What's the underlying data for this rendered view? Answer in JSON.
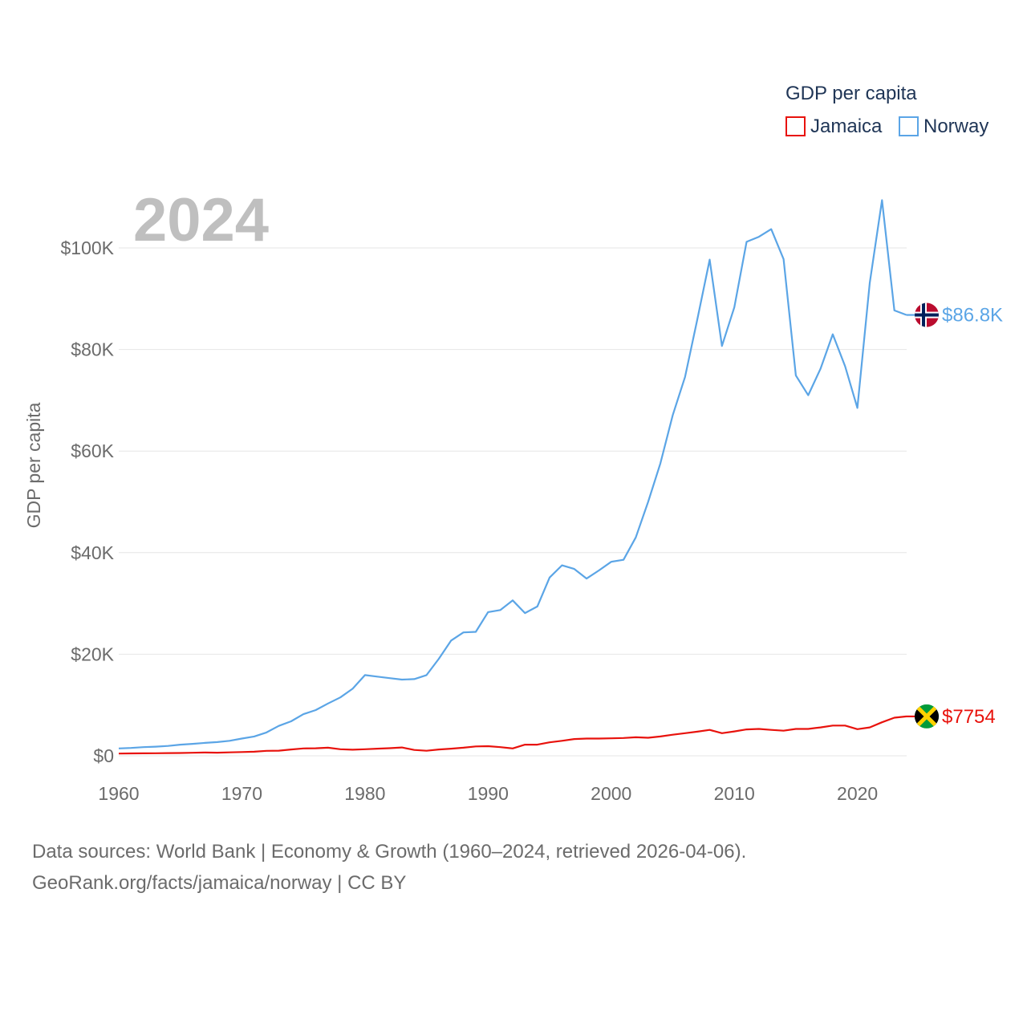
{
  "chart_data": {
    "type": "line",
    "title": "2024",
    "ylabel": "GDP per capita",
    "xlabel": "",
    "xlim": [
      1960,
      2024
    ],
    "ylim": [
      0,
      115000
    ],
    "x_ticks": [
      1960,
      1970,
      1980,
      1990,
      2000,
      2010,
      2020
    ],
    "x_tick_labels": [
      "1960",
      "1970",
      "1980",
      "1990",
      "2000",
      "2010",
      "2020"
    ],
    "y_ticks": [
      0,
      20000,
      40000,
      60000,
      80000,
      100000
    ],
    "y_tick_labels": [
      "$0",
      "$20K",
      "$40K",
      "$60K",
      "$80K",
      "$100K"
    ],
    "grid": true,
    "legend": {
      "title": "GDP per capita",
      "placement": "top-right",
      "entries": [
        "Jamaica",
        "Norway"
      ]
    },
    "x": [
      1960,
      1961,
      1962,
      1963,
      1964,
      1965,
      1966,
      1967,
      1968,
      1969,
      1970,
      1971,
      1972,
      1973,
      1974,
      1975,
      1976,
      1977,
      1978,
      1979,
      1980,
      1981,
      1982,
      1983,
      1984,
      1985,
      1986,
      1987,
      1988,
      1989,
      1990,
      1991,
      1992,
      1993,
      1994,
      1995,
      1996,
      1997,
      1998,
      1999,
      2000,
      2001,
      2002,
      2003,
      2004,
      2005,
      2006,
      2007,
      2008,
      2009,
      2010,
      2011,
      2012,
      2013,
      2014,
      2015,
      2016,
      2017,
      2018,
      2019,
      2020,
      2021,
      2022,
      2023,
      2024
    ],
    "series": [
      {
        "name": "Jamaica",
        "color": "#e8120c",
        "end_label": "$7754",
        "flag": "jamaica-flag",
        "values": [
          450,
          470,
          490,
          510,
          530,
          560,
          600,
          640,
          620,
          680,
          750,
          800,
          980,
          1010,
          1250,
          1450,
          1480,
          1600,
          1300,
          1200,
          1300,
          1400,
          1500,
          1650,
          1150,
          1000,
          1250,
          1400,
          1600,
          1850,
          1900,
          1700,
          1450,
          2200,
          2200,
          2650,
          2950,
          3300,
          3400,
          3400,
          3450,
          3500,
          3650,
          3550,
          3800,
          4150,
          4450,
          4750,
          5100,
          4450,
          4800,
          5200,
          5300,
          5100,
          4950,
          5300,
          5300,
          5600,
          5950,
          5950,
          5250,
          5600,
          6600,
          7500,
          7754
        ]
      },
      {
        "name": "Norway",
        "color": "#5ba5e6",
        "end_label": "$86.8K",
        "flag": "norway-flag",
        "values": [
          1450,
          1550,
          1700,
          1800,
          1950,
          2200,
          2350,
          2550,
          2700,
          2950,
          3400,
          3800,
          4600,
          5900,
          6800,
          8200,
          9000,
          10300,
          11500,
          13200,
          15900,
          15600,
          15300,
          15000,
          15100,
          15900,
          19100,
          22700,
          24300,
          24400,
          28300,
          28700,
          30600,
          28100,
          29400,
          35100,
          37500,
          36800,
          34900,
          36500,
          38200,
          38600,
          43000,
          50000,
          57600,
          67100,
          74600,
          86000,
          97700,
          80700,
          88300,
          101200,
          102200,
          103700,
          97800,
          74900,
          71000,
          76200,
          83000,
          76700,
          68500,
          93100,
          109400,
          87700,
          86800
        ]
      }
    ],
    "annotations": {
      "sources_line_1": "Data sources: World Bank | Economy & Growth (1960–2024, retrieved 2026-04-06).",
      "sources_line_2": "GeoRank.org/facts/jamaica/norway | CC BY"
    }
  },
  "colors": {
    "jamaica": "#e8120c",
    "norway": "#5ba5e6",
    "grid": "#e6e6e6",
    "tick_text": "#6b6b6b",
    "year_watermark": "#bfbfbf"
  }
}
